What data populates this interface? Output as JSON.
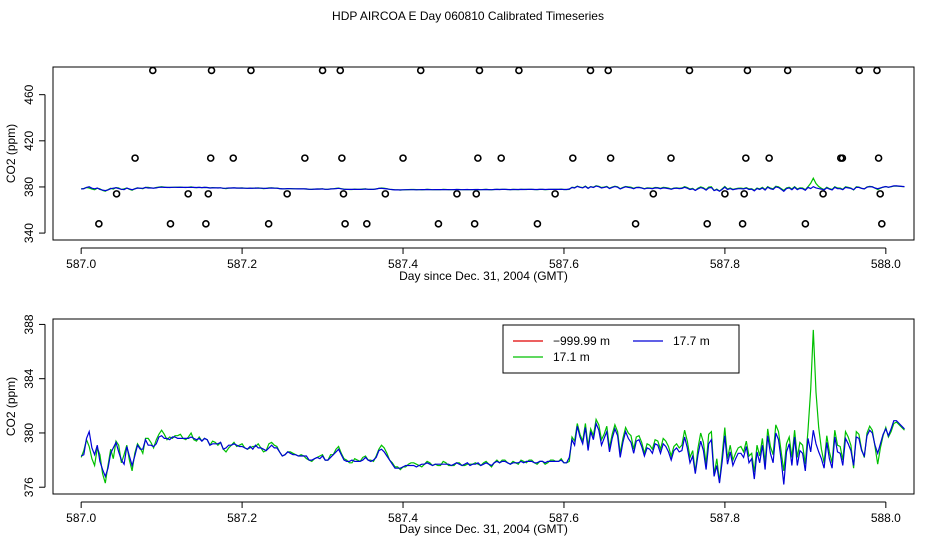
{
  "title": "HDP AIRCOA E  Day 060810  Calibrated Timeseries",
  "chart_data": [
    {
      "type": "scatter",
      "xlabel": "Day since Dec. 31, 2004 (GMT)",
      "ylabel": "CO2 (ppm)",
      "xlim": [
        586.965,
        588.035
      ],
      "ylim": [
        334,
        484
      ],
      "xticks": [
        587.0,
        587.2,
        587.4,
        587.6,
        587.8,
        588.0
      ],
      "xtick_labels": [
        "587.0",
        "587.2",
        "587.4",
        "587.6",
        "587.8",
        "588.0"
      ],
      "yticks": [
        340,
        380,
        420,
        460
      ],
      "ytick_labels": [
        "340",
        "380",
        "420",
        "460"
      ],
      "series": [
        {
          "color": "#000000",
          "marker": "open-circle",
          "x": [
            587.022,
            587.044,
            587.067,
            587.089,
            587.111,
            587.133,
            587.155,
            587.158,
            587.161,
            587.162,
            587.189,
            587.211,
            587.233,
            587.256,
            587.278,
            587.3,
            587.322,
            587.324,
            587.326,
            587.328,
            587.355,
            587.378,
            587.4,
            587.422,
            587.444,
            587.467,
            587.489,
            587.491,
            587.493,
            587.495,
            587.522,
            587.544,
            587.567,
            587.589,
            587.611,
            587.633,
            587.655,
            587.658,
            587.689,
            587.711,
            587.733,
            587.756,
            587.778,
            587.8,
            587.822,
            587.824,
            587.826,
            587.828,
            587.855,
            587.878,
            587.9,
            587.922,
            587.944,
            587.946,
            587.967,
            587.989,
            587.991,
            587.993,
            587.995
          ],
          "y": [
            348,
            374,
            405,
            481,
            348,
            374,
            348,
            374,
            405,
            481,
            405,
            481,
            348,
            374,
            405,
            481,
            481,
            405,
            374,
            348,
            348,
            374,
            405,
            481,
            348,
            374,
            348,
            374,
            405,
            481,
            405,
            481,
            348,
            374,
            405,
            481,
            481,
            405,
            348,
            374,
            405,
            481,
            348,
            374,
            348,
            374,
            405,
            481,
            405,
            481,
            348,
            374,
            405,
            405,
            481,
            481,
            405,
            374,
            348
          ]
        }
      ]
    },
    {
      "type": "line",
      "xlabel": "Day since Dec. 31, 2004 (GMT)",
      "ylabel": "CO2 (ppm)",
      "xlim": [
        586.965,
        588.035
      ],
      "ylim": [
        375.5,
        388.4
      ],
      "xticks": [
        587.0,
        587.2,
        587.4,
        587.6,
        587.8,
        588.0
      ],
      "xtick_labels": [
        "587.0",
        "587.2",
        "587.4",
        "587.6",
        "587.8",
        "588.0"
      ],
      "yticks": [
        376,
        380,
        384,
        388
      ],
      "ytick_labels": [
        "376",
        "380",
        "384",
        "388"
      ],
      "legend_position": "top-right",
      "x_step": 0.003333,
      "series": [
        {
          "name": "−999.99 m",
          "color": "#e00000",
          "x": [],
          "y": []
        },
        {
          "name": "17.1 m",
          "color": "#00c000",
          "x_start": 587.0,
          "y": [
            378.2,
            378.7,
            379.5,
            379.0,
            378.1,
            377.6,
            378.9,
            378.4,
            377.0,
            376.3,
            377.6,
            378.8,
            378.1,
            379.4,
            379.1,
            377.8,
            378.4,
            379.1,
            378.0,
            377.2,
            378.5,
            379.2,
            378.9,
            378.5,
            379.6,
            379.6,
            379.3,
            378.9,
            379.5,
            379.9,
            380.2,
            379.9,
            379.5,
            379.7,
            379.6,
            379.8,
            379.8,
            379.9,
            379.6,
            379.5,
            379.7,
            380.0,
            379.5,
            379.4,
            379.7,
            379.4,
            379.6,
            379.5,
            379.1,
            379.4,
            379.3,
            379.1,
            379.3,
            378.8,
            378.6,
            378.9,
            379.1,
            379.3,
            379.0,
            379.1,
            379.2,
            378.9,
            378.8,
            378.9,
            379.0,
            379.0,
            379.2,
            378.9,
            378.6,
            378.7,
            379.2,
            379.3,
            379.1,
            379.0,
            378.6,
            378.3,
            378.4,
            378.6,
            378.6,
            378.5,
            378.4,
            378.3,
            378.4,
            378.3,
            378.1,
            378.0,
            377.9,
            378.1,
            378.2,
            378.3,
            378.4,
            378.0,
            378.0,
            378.4,
            378.4,
            378.8,
            379.0,
            378.5,
            378.1,
            378.0,
            377.8,
            377.8,
            378.1,
            378.0,
            377.9,
            378.2,
            378.3,
            378.0,
            378.0,
            377.9,
            378.3,
            378.8,
            379.1,
            378.9,
            378.5,
            378.0,
            377.8,
            377.5,
            377.5,
            377.3,
            377.5,
            377.5,
            377.7,
            377.8,
            377.8,
            377.7,
            377.6,
            377.5,
            377.7,
            377.9,
            377.8,
            377.6,
            377.7,
            377.6,
            377.6,
            377.9,
            377.8,
            377.6,
            377.6,
            377.6,
            377.8,
            377.8,
            377.6,
            377.6,
            377.7,
            377.7,
            377.7,
            377.8,
            377.7,
            377.6,
            377.8,
            377.9,
            377.7,
            377.5,
            377.8,
            378.0,
            377.8,
            378.0,
            378.0,
            377.8,
            377.7,
            377.9,
            377.8,
            377.7,
            378.0,
            377.9,
            377.8,
            378.0,
            378.0,
            377.8,
            377.7,
            377.9,
            377.9,
            377.7,
            377.8,
            378.0,
            378.0,
            377.9,
            377.9,
            378.1,
            377.8,
            377.8,
            377.9,
            379.7,
            379.4,
            380.7,
            379.9,
            379.4,
            380.7,
            379.0,
            380.3,
            379.8,
            381.0,
            380.6,
            379.5,
            379.9,
            380.5,
            378.9,
            379.9,
            380.6,
            380.1,
            378.5,
            379.6,
            380.4,
            380.0,
            379.8,
            378.8,
            379.7,
            379.8,
            379.3,
            378.5,
            379.2,
            379.1,
            378.8,
            379.5,
            379.4,
            378.8,
            379.6,
            379.4,
            379.0,
            378.3,
            379.0,
            379.2,
            378.9,
            379.1,
            380.2,
            379.4,
            378.2,
            378.7,
            377.1,
            378.9,
            380.0,
            379.3,
            377.7,
            379.9,
            380.1,
            376.9,
            378.1,
            376.4,
            378.4,
            380.4,
            378.1,
            379.1,
            378.0,
            378.5,
            378.9,
            379.0,
            378.6,
            379.4,
            378.3,
            378.5,
            377.1,
            379.1,
            378.3,
            379.6,
            377.8,
            380.3,
            379.0,
            378.4,
            380.6,
            380.1,
            378.6,
            377.2,
            379.2,
            379.7,
            378.2,
            380.2,
            378.2,
            379.3,
            379.1,
            377.7,
            380.2,
            383.2,
            387.6,
            383.0,
            380.4,
            378.8,
            377.8,
            379.8,
            378.6,
            377.8,
            380.2,
            379.1,
            379.0,
            378.0,
            380.1,
            379.7,
            379.1,
            377.4,
            380.1,
            379.9,
            378.8,
            378.2,
            380.0,
            380.5,
            380.2,
            379.0,
            377.7,
            378.9,
            379.8,
            380.4,
            379.7,
            380.1,
            380.7,
            380.8,
            380.6,
            380.4,
            380.2
          ]
        },
        {
          "name": "17.7 m",
          "color": "#0000d8",
          "x_start": 587.0,
          "y": [
            378.3,
            378.4,
            379.6,
            380.1,
            378.9,
            378.4,
            379.1,
            377.9,
            377.3,
            376.8,
            377.4,
            378.5,
            378.9,
            379.3,
            378.6,
            378.0,
            377.7,
            379.0,
            378.3,
            377.6,
            378.3,
            379.1,
            378.8,
            378.8,
            379.5,
            379.1,
            379.1,
            379.0,
            379.2,
            379.7,
            379.8,
            379.6,
            379.6,
            379.5,
            379.7,
            379.7,
            379.6,
            379.6,
            379.6,
            379.6,
            379.6,
            379.7,
            379.6,
            379.5,
            379.6,
            379.4,
            379.6,
            379.5,
            379.1,
            379.2,
            379.2,
            379.2,
            379.3,
            378.8,
            378.9,
            379.1,
            379.1,
            379.2,
            379.1,
            379.0,
            379.0,
            378.9,
            378.8,
            379.0,
            378.8,
            379.1,
            378.9,
            378.9,
            378.8,
            378.7,
            378.9,
            379.1,
            378.9,
            378.9,
            378.6,
            378.3,
            378.4,
            378.6,
            378.5,
            378.4,
            378.4,
            378.3,
            378.3,
            378.3,
            378.3,
            378.0,
            378.0,
            378.1,
            378.2,
            378.1,
            378.3,
            378.0,
            378.0,
            378.2,
            378.4,
            378.6,
            378.8,
            378.4,
            378.0,
            377.9,
            377.9,
            378.0,
            377.9,
            377.9,
            377.9,
            378.0,
            378.2,
            378.0,
            377.9,
            378.0,
            378.2,
            378.7,
            378.8,
            378.6,
            378.3,
            378.0,
            377.7,
            377.4,
            377.4,
            377.4,
            377.5,
            377.6,
            377.6,
            377.6,
            377.6,
            377.5,
            377.6,
            377.7,
            377.7,
            377.8,
            377.7,
            377.6,
            377.7,
            377.7,
            377.7,
            377.7,
            377.7,
            377.7,
            377.6,
            377.7,
            377.8,
            377.7,
            377.6,
            377.7,
            377.8,
            377.6,
            377.7,
            377.7,
            377.8,
            377.6,
            377.7,
            377.8,
            377.7,
            377.6,
            377.8,
            377.9,
            377.8,
            377.9,
            377.9,
            377.8,
            377.7,
            377.8,
            377.8,
            377.8,
            377.9,
            377.8,
            377.9,
            377.9,
            377.9,
            377.8,
            377.8,
            377.9,
            377.9,
            377.8,
            377.9,
            377.9,
            377.9,
            377.9,
            377.9,
            378.0,
            377.8,
            377.8,
            378.2,
            379.5,
            379.1,
            380.5,
            379.7,
            379.2,
            380.4,
            378.7,
            380.1,
            379.5,
            380.7,
            380.2,
            379.1,
            379.6,
            380.1,
            378.6,
            379.6,
            380.3,
            379.8,
            378.2,
            379.3,
            380.1,
            379.6,
            379.3,
            378.5,
            379.4,
            379.5,
            379.0,
            378.3,
            378.9,
            378.8,
            378.5,
            379.2,
            379.1,
            378.5,
            379.2,
            379.0,
            378.6,
            378.0,
            378.7,
            378.9,
            378.6,
            378.7,
            379.7,
            378.9,
            377.8,
            378.3,
            377.0,
            378.4,
            379.4,
            378.7,
            377.3,
            379.2,
            379.5,
            376.8,
            377.6,
            376.3,
            377.9,
            379.8,
            377.7,
            378.6,
            377.6,
            378.1,
            378.5,
            378.5,
            378.2,
            379.0,
            377.8,
            378.1,
            376.6,
            378.6,
            377.8,
            379.1,
            377.3,
            379.8,
            378.5,
            377.8,
            380.0,
            379.5,
            378.0,
            376.2,
            378.6,
            379.2,
            377.6,
            379.7,
            377.6,
            378.7,
            378.5,
            377.2,
            379.6,
            378.6,
            380.2,
            379.2,
            378.6,
            378.1,
            377.4,
            379.3,
            378.1,
            377.4,
            379.7,
            378.6,
            378.5,
            377.6,
            379.6,
            379.2,
            378.7,
            377.6,
            379.7,
            379.6,
            378.7,
            378.3,
            379.8,
            380.2,
            380.0,
            379.1,
            378.5,
            379.2,
            379.9,
            380.3,
            379.8,
            380.3,
            380.9,
            380.9,
            380.7,
            380.5,
            380.3
          ]
        }
      ]
    }
  ]
}
